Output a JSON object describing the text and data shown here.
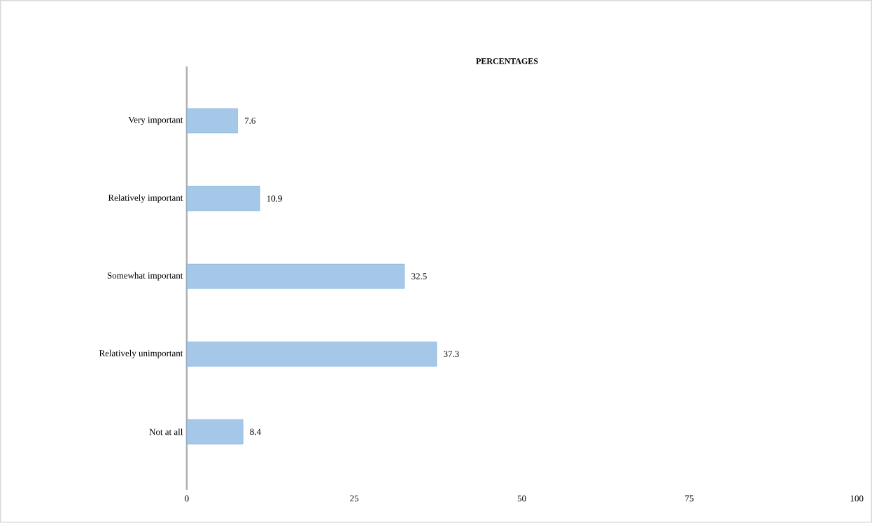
{
  "chart_data": {
    "type": "bar",
    "orientation": "horizontal",
    "title": "PERCENTAGES",
    "categories": [
      "Very important",
      "Relatively important",
      "Somewhat important",
      "Relatively unimportant",
      "Not at all"
    ],
    "values": [
      7.6,
      10.9,
      32.5,
      37.3,
      8.4
    ],
    "color": "#5b9bd5",
    "xlim": [
      0,
      100
    ],
    "xticks": [
      0,
      25,
      50,
      75,
      100
    ],
    "data_labels": true
  }
}
